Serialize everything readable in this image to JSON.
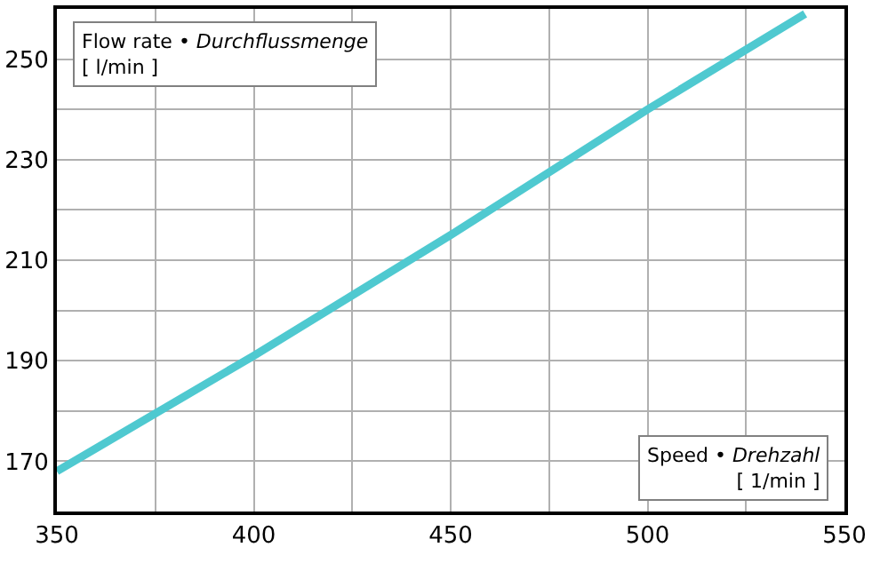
{
  "chart_data": {
    "type": "line",
    "x": [
      350,
      400,
      450,
      500,
      540
    ],
    "series": [
      {
        "color": "#4fc9d0",
        "values": [
          168,
          191,
          215,
          240,
          259
        ]
      }
    ],
    "xlabel": "Speed • Drehzahl\n[ 1/min ]",
    "ylabel": "Flow rate • Durchflussmenge\n[ l/min ]",
    "xlim": [
      350,
      550
    ],
    "xticks": [
      350,
      {
        "value": 375,
        "label": null
      },
      400,
      {
        "value": 425,
        "label": null
      },
      450,
      {
        "value": 475,
        "label": null
      },
      500,
      {
        "value": 525,
        "label": null
      },
      550
    ],
    "ylim": [
      160,
      260
    ],
    "yticks": [
      {
        "value": 160,
        "label": null
      },
      170,
      {
        "value": 180,
        "label": null
      },
      190,
      {
        "value": 200,
        "label": null
      },
      210,
      {
        "value": 220,
        "label": null
      },
      230,
      {
        "value": 240,
        "label": null
      },
      250,
      {
        "value": 260,
        "label": null
      }
    ],
    "grid": true,
    "marker": "none",
    "line_style": "solid",
    "legend": false
  }
}
